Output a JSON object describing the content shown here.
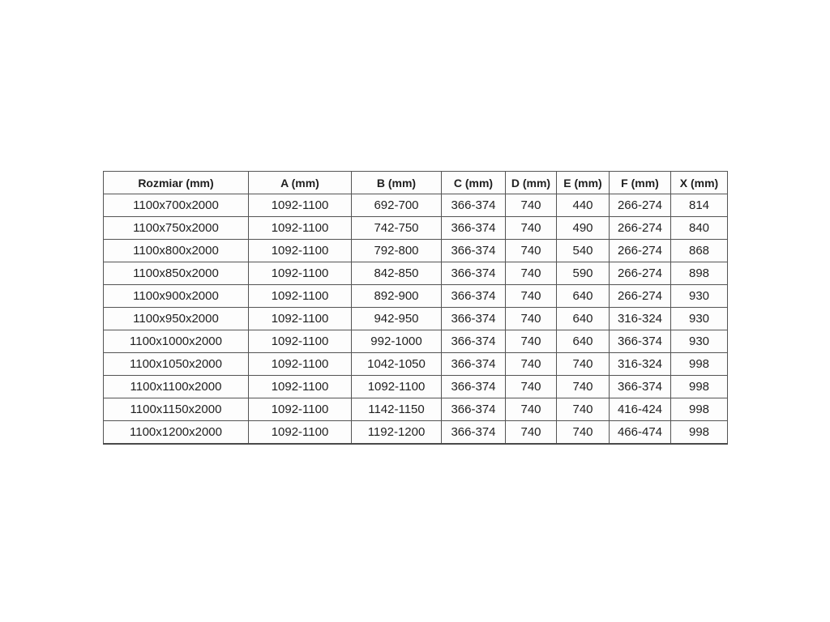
{
  "table": {
    "name": "shower-enclosure-dimensions",
    "columns": [
      "Rozmiar (mm)",
      "A (mm)",
      "B (mm)",
      "C (mm)",
      "D (mm)",
      "E (mm)",
      "F (mm)",
      "X (mm)"
    ],
    "rows": [
      [
        "1100x700x2000",
        "1092-1100",
        "692-700",
        "366-374",
        "740",
        "440",
        "266-274",
        "814"
      ],
      [
        "1100x750x2000",
        "1092-1100",
        "742-750",
        "366-374",
        "740",
        "490",
        "266-274",
        "840"
      ],
      [
        "1100x800x2000",
        "1092-1100",
        "792-800",
        "366-374",
        "740",
        "540",
        "266-274",
        "868"
      ],
      [
        "1100x850x2000",
        "1092-1100",
        "842-850",
        "366-374",
        "740",
        "590",
        "266-274",
        "898"
      ],
      [
        "1100x900x2000",
        "1092-1100",
        "892-900",
        "366-374",
        "740",
        "640",
        "266-274",
        "930"
      ],
      [
        "1100x950x2000",
        "1092-1100",
        "942-950",
        "366-374",
        "740",
        "640",
        "316-324",
        "930"
      ],
      [
        "1100x1000x2000",
        "1092-1100",
        "992-1000",
        "366-374",
        "740",
        "640",
        "366-374",
        "930"
      ],
      [
        "1100x1050x2000",
        "1092-1100",
        "1042-1050",
        "366-374",
        "740",
        "740",
        "316-324",
        "998"
      ],
      [
        "1100x1100x2000",
        "1092-1100",
        "1092-1100",
        "366-374",
        "740",
        "740",
        "366-374",
        "998"
      ],
      [
        "1100x1150x2000",
        "1092-1100",
        "1142-1150",
        "366-374",
        "740",
        "740",
        "416-424",
        "998"
      ],
      [
        "1100x1200x2000",
        "1092-1100",
        "1192-1200",
        "366-374",
        "740",
        "740",
        "466-474",
        "998"
      ]
    ]
  },
  "colors": {
    "border": "#545454",
    "text": "#1f1f1f",
    "cell_background": "#fdfdfd",
    "page_background": "#ffffff"
  }
}
